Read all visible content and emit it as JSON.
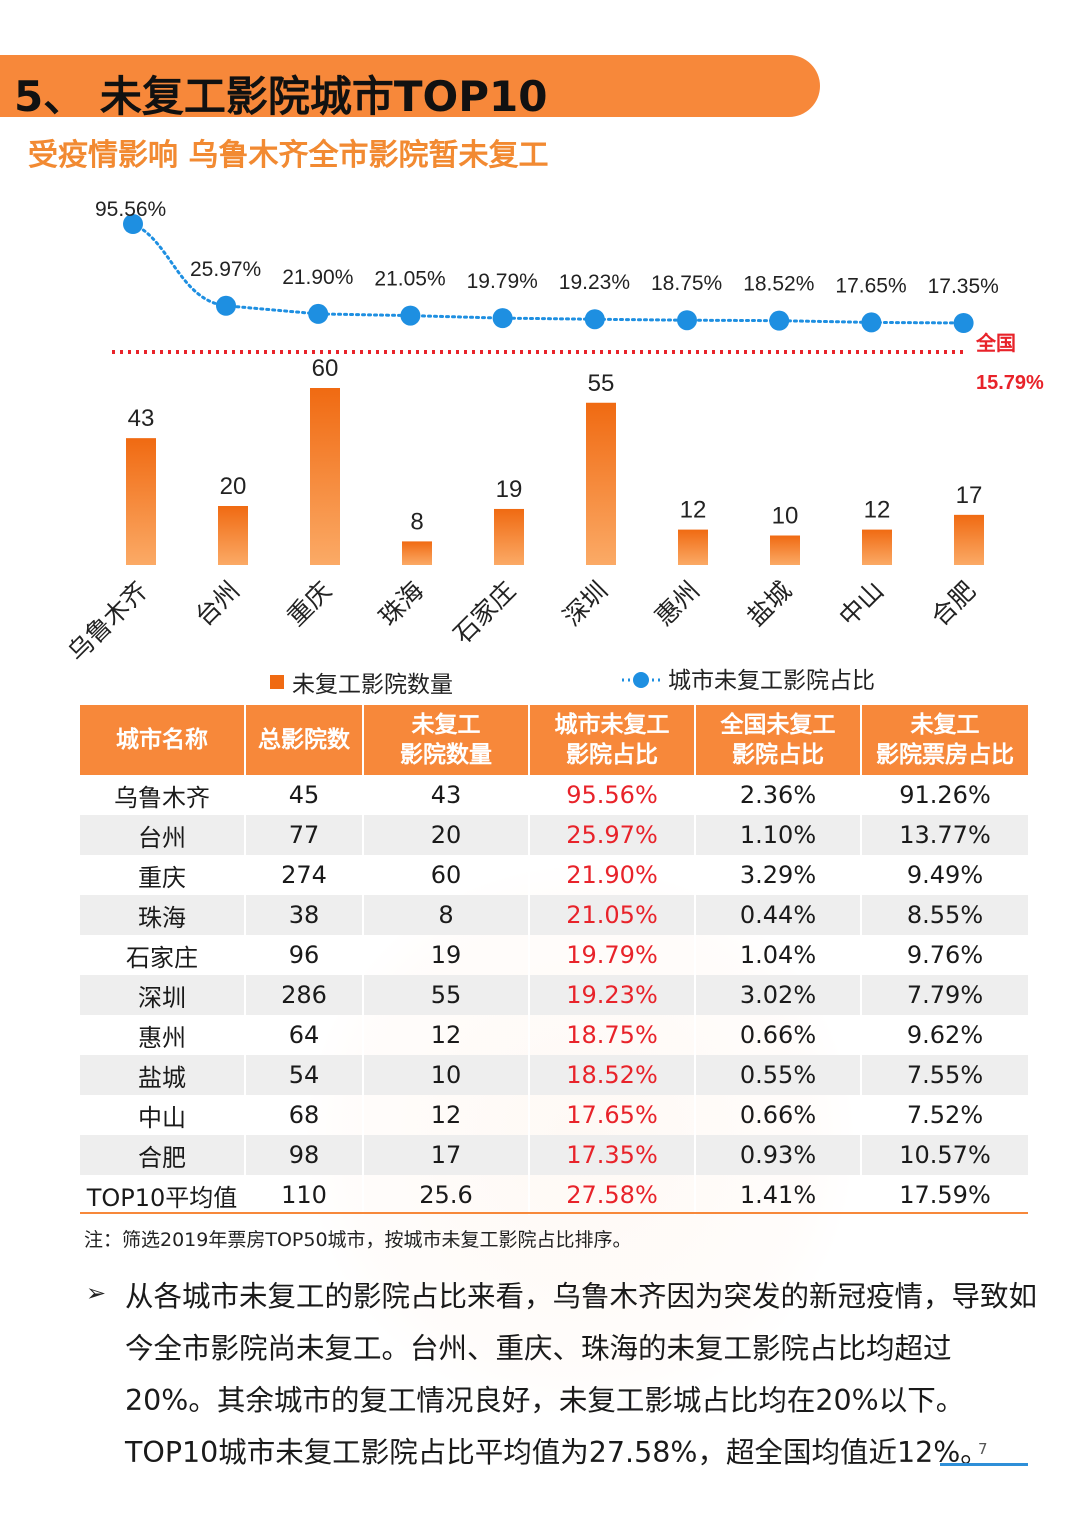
{
  "header": {
    "title": "5、 未复工影院城市TOP10",
    "subtitle": "受疫情影响 乌鲁木齐全市影院暂未复工"
  },
  "colors": {
    "accent": "#f7883a",
    "line": "#1e8fe1",
    "national": "#e8232a",
    "bar_top": "#f06a12",
    "bar_bottom": "#fbaa66"
  },
  "chart_data": {
    "type": "bar+line",
    "categories": [
      "乌鲁木齐",
      "台州",
      "重庆",
      "珠海",
      "石家庄",
      "深圳",
      "惠州",
      "盐城",
      "中山",
      "合肥"
    ],
    "series": [
      {
        "name": "未复工影院数量",
        "type": "bar",
        "values": [
          43,
          20,
          60,
          8,
          19,
          55,
          12,
          10,
          12,
          17
        ]
      },
      {
        "name": "城市未复工影院占比",
        "type": "line",
        "values": [
          95.56,
          25.97,
          21.9,
          21.05,
          19.79,
          19.23,
          18.75,
          18.52,
          17.65,
          17.35
        ],
        "labels": [
          "95.56%",
          "25.97%",
          "21.90%",
          "21.05%",
          "19.79%",
          "19.23%",
          "18.75%",
          "18.52%",
          "17.65%",
          "17.35%"
        ]
      }
    ],
    "reference": {
      "label": "全国",
      "value": 15.79,
      "value_label": "15.79%"
    },
    "legend": [
      "未复工影院数量",
      "城市未复工影院占比"
    ]
  },
  "table": {
    "headers": [
      {
        "l1": "城市名称",
        "l2": ""
      },
      {
        "l1": "总影院数",
        "l2": ""
      },
      {
        "l1": "未复工",
        "l2": "影院数量"
      },
      {
        "l1": "城市未复工",
        "l2": "影院占比"
      },
      {
        "l1": "全国未复工",
        "l2": "影院占比"
      },
      {
        "l1": "未复工",
        "l2": "影院票房占比"
      }
    ],
    "rows": [
      [
        "乌鲁木齐",
        "45",
        "43",
        "95.56%",
        "2.36%",
        "91.26%"
      ],
      [
        "台州",
        "77",
        "20",
        "25.97%",
        "1.10%",
        "13.77%"
      ],
      [
        "重庆",
        "274",
        "60",
        "21.90%",
        "3.29%",
        "9.49%"
      ],
      [
        "珠海",
        "38",
        "8",
        "21.05%",
        "0.44%",
        "8.55%"
      ],
      [
        "石家庄",
        "96",
        "19",
        "19.79%",
        "1.04%",
        "9.76%"
      ],
      [
        "深圳",
        "286",
        "55",
        "19.23%",
        "3.02%",
        "7.79%"
      ],
      [
        "惠州",
        "64",
        "12",
        "18.75%",
        "0.66%",
        "9.62%"
      ],
      [
        "盐城",
        "54",
        "10",
        "18.52%",
        "0.55%",
        "7.55%"
      ],
      [
        "中山",
        "68",
        "12",
        "17.65%",
        "0.66%",
        "7.52%"
      ],
      [
        "合肥",
        "98",
        "17",
        "17.35%",
        "0.93%",
        "10.57%"
      ],
      [
        "TOP10平均值",
        "110",
        "25.6",
        "27.58%",
        "1.41%",
        "17.59%"
      ]
    ]
  },
  "note": "注：筛选2019年票房TOP50城市，按城市未复工影院占比排序。",
  "paragraph": {
    "bullet": "➢",
    "text": "从各城市未复工的影院占比来看，乌鲁木齐因为突发的新冠疫情，导致如今全市影院尚未复工。台州、重庆、珠海的未复工影院占比均超过20%。其余城市的复工情况良好，未复工影城占比均在20%以下。TOP10城市未复工影院占比平均值为27.58%，超全国均值近12%。"
  },
  "page_number": "7"
}
